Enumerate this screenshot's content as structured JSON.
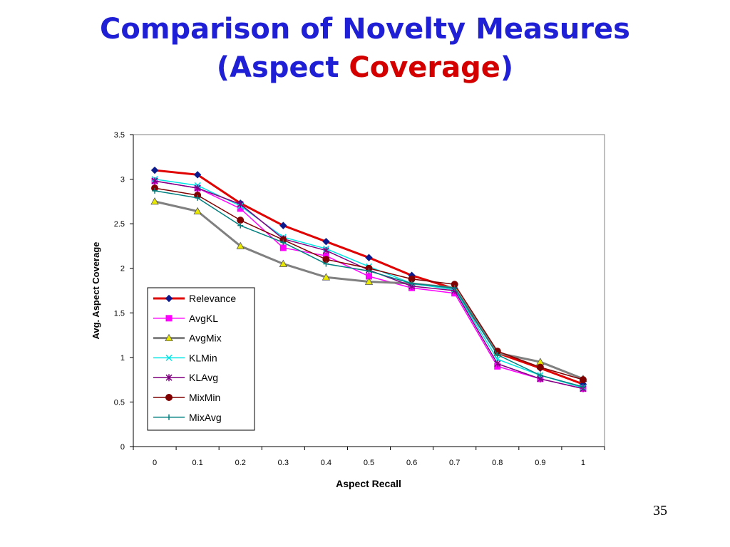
{
  "slide": {
    "title_line1": "Comparison of Novelty Measures",
    "title_open": "(Aspect ",
    "title_accent": "Coverage",
    "title_close": ")",
    "page_number": "35"
  },
  "colors": {
    "title": "#1f1fd6",
    "title_accent": "#d40000"
  },
  "chart_data": {
    "type": "line",
    "xlabel": "Aspect Recall",
    "ylabel": "Avg. Aspect Coverage",
    "x": [
      0,
      0.1,
      0.2,
      0.3,
      0.4,
      0.5,
      0.6,
      0.7,
      0.8,
      0.9,
      1
    ],
    "x_tick_labels": [
      "0",
      "0.1",
      "0.2",
      "0.3",
      "0.4",
      "0.5",
      "0.6",
      "0.7",
      "0.8",
      "0.9",
      "1"
    ],
    "y_ticks": [
      0,
      0.5,
      1,
      1.5,
      2,
      2.5,
      3,
      3.5
    ],
    "y_tick_labels": [
      "0",
      "0.5",
      "1",
      "1.5",
      "2",
      "2.5",
      "3",
      "3.5"
    ],
    "ylim": [
      0,
      3.5
    ],
    "grid": false,
    "legend_position": "left, inside plot area",
    "series": [
      {
        "name": "Relevance",
        "color": "#e00000",
        "marker": "diamond",
        "marker_color": "#0b1a8c",
        "thick": true,
        "values": [
          3.1,
          3.05,
          2.73,
          2.48,
          2.3,
          2.12,
          1.92,
          1.77,
          1.05,
          0.88,
          0.7
        ]
      },
      {
        "name": "AvgKL",
        "color": "#ff00ff",
        "marker": "square",
        "marker_color": "#ff00ff",
        "thick": false,
        "values": [
          2.98,
          2.9,
          2.67,
          2.23,
          2.14,
          1.91,
          1.78,
          1.72,
          0.9,
          0.76,
          0.65
        ]
      },
      {
        "name": "AvgMix",
        "color": "#808080",
        "marker": "triangle",
        "marker_color": "#e8e800",
        "thick": true,
        "values": [
          2.75,
          2.64,
          2.25,
          2.05,
          1.9,
          1.85,
          1.83,
          1.78,
          1.05,
          0.95,
          0.76
        ]
      },
      {
        "name": "KLMin",
        "color": "#00e5e5",
        "marker": "x",
        "marker_color": "#00e5e5",
        "thick": false,
        "values": [
          3.0,
          2.93,
          2.7,
          2.35,
          2.22,
          2.02,
          1.83,
          1.76,
          0.98,
          0.8,
          0.66
        ]
      },
      {
        "name": "KLAvg",
        "color": "#800080",
        "marker": "star",
        "marker_color": "#800080",
        "thick": false,
        "values": [
          2.98,
          2.9,
          2.72,
          2.33,
          2.2,
          1.98,
          1.8,
          1.75,
          0.93,
          0.76,
          0.65
        ]
      },
      {
        "name": "MixMin",
        "color": "#800000",
        "marker": "circle",
        "marker_color": "#800000",
        "thick": false,
        "values": [
          2.9,
          2.82,
          2.54,
          2.32,
          2.1,
          2.0,
          1.88,
          1.82,
          1.07,
          0.89,
          0.75
        ]
      },
      {
        "name": "MixAvg",
        "color": "#008080",
        "marker": "plus",
        "marker_color": "#008080",
        "thick": false,
        "values": [
          2.87,
          2.79,
          2.48,
          2.29,
          2.05,
          1.97,
          1.83,
          1.78,
          1.03,
          0.8,
          0.67
        ]
      }
    ]
  }
}
